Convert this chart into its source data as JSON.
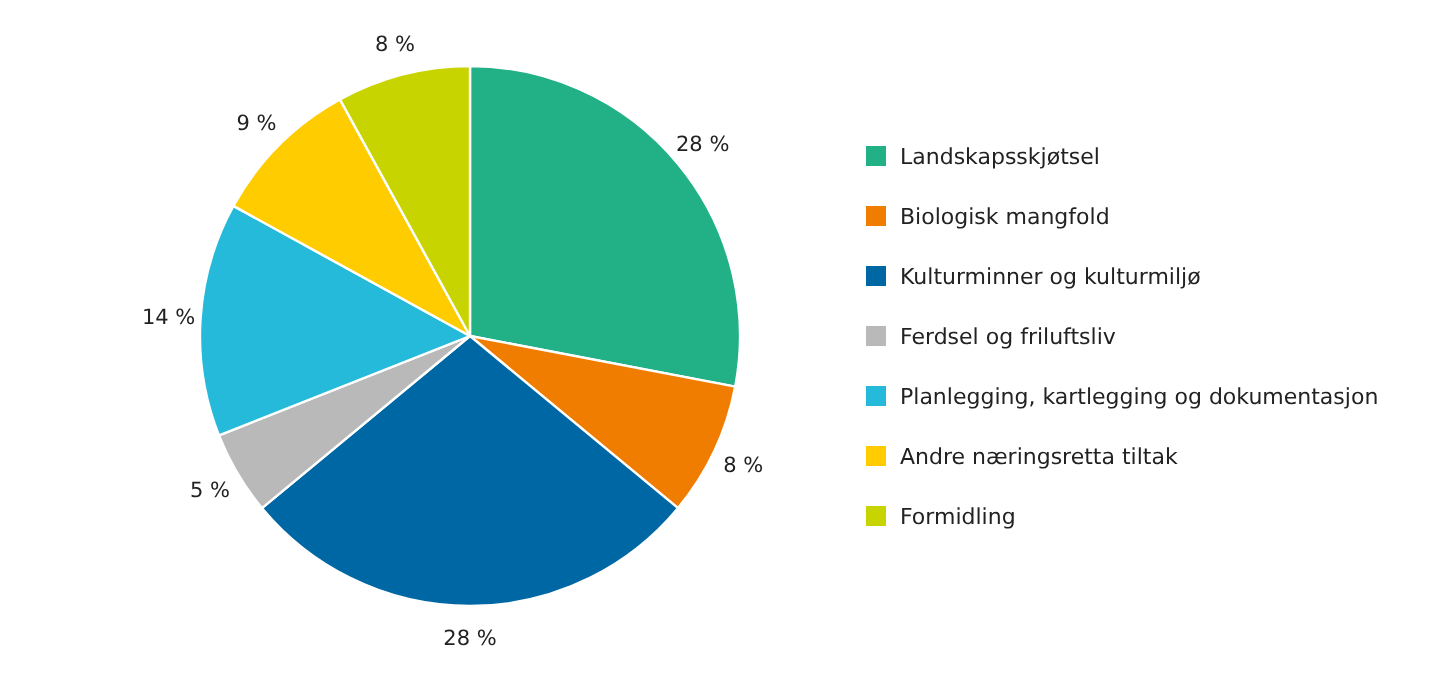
{
  "chart_data": {
    "type": "pie",
    "categories": [
      "Landskapsskjøtsel",
      "Biologisk mangfold",
      "Kulturminner og kulturmiljø",
      "Ferdsel og friluftsliv",
      "Planlegging, kartlegging og dokumentasjon",
      "Andre næringsretta tiltak",
      "Formidling"
    ],
    "values": [
      28,
      8,
      28,
      5,
      14,
      9,
      8
    ],
    "value_labels": [
      "28 %",
      "8 %",
      "28 %",
      "5 %",
      "14 %",
      "9 %",
      "8 %"
    ],
    "colors": [
      "#22b087",
      "#f07d00",
      "#0067a5",
      "#b9b9b9",
      "#25b9da",
      "#ffcc00",
      "#c8d400"
    ],
    "legend": "right"
  }
}
